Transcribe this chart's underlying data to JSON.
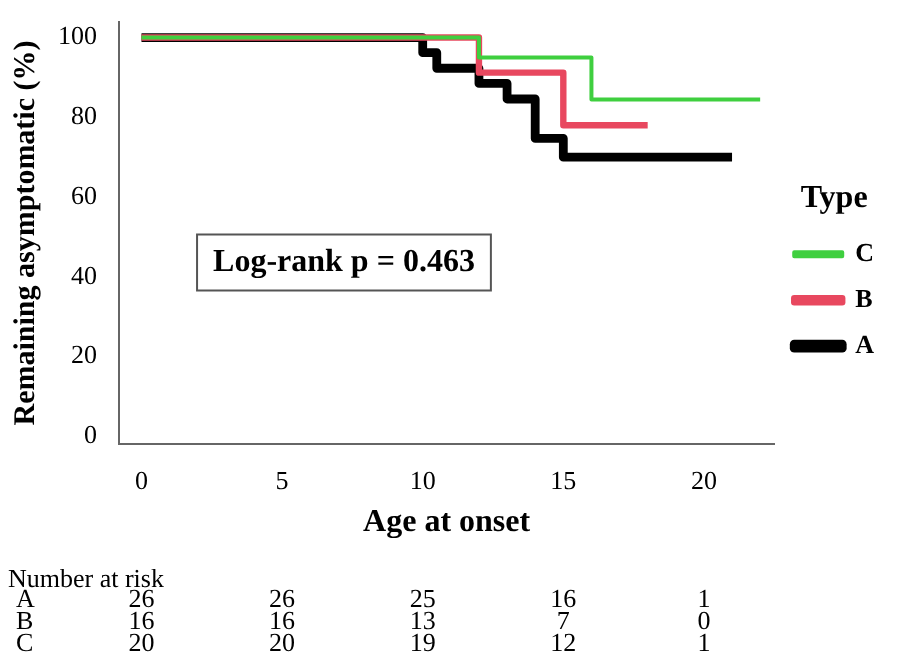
{
  "chart_data": {
    "type": "step",
    "xlabel": "Age at onset",
    "ylabel": "Remaining asymptomatic (%)",
    "legend_title": "Type",
    "legend": "right",
    "xlim": [
      -0.8,
      22.5
    ],
    "xticks": [
      0,
      5,
      10,
      15,
      20
    ],
    "ylim": [
      -2,
      104
    ],
    "yticks": [
      0,
      20,
      40,
      60,
      80,
      100
    ],
    "series": [
      {
        "name": "A",
        "color": "#000000",
        "x": [
          0,
          10,
          10.5,
          12,
          13,
          14,
          15,
          21
        ],
        "values": [
          100,
          96.2,
          92.3,
          88.5,
          84.6,
          74.7,
          70,
          70
        ]
      },
      {
        "name": "B",
        "color": "#e8485f",
        "x": [
          0,
          12,
          15,
          18
        ],
        "values": [
          100,
          91.2,
          78,
          78
        ]
      },
      {
        "name": "C",
        "color": "#3fcf3f",
        "x": [
          0,
          12,
          16,
          22
        ],
        "values": [
          100,
          95,
          84.5,
          84.5
        ]
      }
    ],
    "annotations": [
      "Log-rank p = 0.463",
      "Number at risk",
      "A 26 26 25 16 1",
      "B 16 16 13 7 0",
      "C 20 20 19 12 1"
    ]
  }
}
